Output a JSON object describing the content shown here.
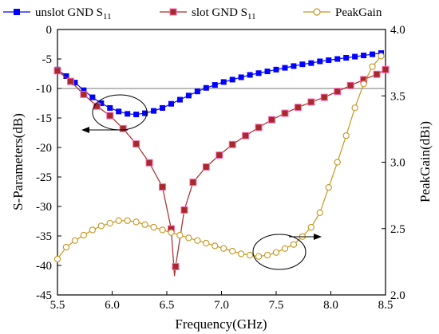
{
  "chart_data": {
    "type": "line",
    "xlabel": "Frequency(GHz)",
    "ylabel": "S-Parameters(dB)",
    "ylabel_right": "PeakGain(dBi)",
    "xlim": [
      5.5,
      8.5
    ],
    "ylim": [
      -45,
      0
    ],
    "ylim_right": [
      2.0,
      4.0
    ],
    "x_ticks": [
      "5.5",
      "6.0",
      "6.5",
      "7.0",
      "7.5",
      "8.0",
      "8.5"
    ],
    "y_ticks": [
      "0",
      "-5",
      "-10",
      "-15",
      "-20",
      "-25",
      "-30",
      "-35",
      "-40",
      "-45"
    ],
    "y_ticks_right": [
      "2.0",
      "2.5",
      "3.0",
      "3.5",
      "4.0"
    ],
    "grid": false,
    "legend_position": "top",
    "reference_line_db": -10,
    "series": [
      {
        "name": "unslot GND S",
        "name_subscript": "11",
        "axis": "left",
        "color": "#0000ff",
        "marker": "filled-square",
        "x": [
          5.5,
          5.58,
          5.66,
          5.74,
          5.82,
          5.9,
          5.98,
          6.06,
          6.14,
          6.22,
          6.3,
          6.38,
          6.46,
          6.54,
          6.62,
          6.7,
          6.78,
          6.86,
          6.94,
          7.02,
          7.1,
          7.18,
          7.26,
          7.34,
          7.42,
          7.5,
          7.58,
          7.66,
          7.74,
          7.82,
          7.9,
          7.98,
          8.06,
          8.14,
          8.22,
          8.3,
          8.38,
          8.46
        ],
        "values": [
          -6.8,
          -7.9,
          -9.0,
          -10.3,
          -11.5,
          -12.5,
          -13.3,
          -13.9,
          -14.3,
          -14.4,
          -14.2,
          -13.8,
          -13.3,
          -12.6,
          -11.9,
          -11.2,
          -10.5,
          -9.9,
          -9.4,
          -8.9,
          -8.5,
          -8.1,
          -7.7,
          -7.4,
          -7.1,
          -6.8,
          -6.5,
          -6.2,
          -5.9,
          -5.7,
          -5.4,
          -5.2,
          -5.0,
          -4.8,
          -4.6,
          -4.4,
          -4.2,
          -4.0
        ]
      },
      {
        "name": "slot GND S",
        "name_subscript": "11",
        "axis": "left",
        "color": "#a52a2a",
        "marker": "filled-square",
        "x": [
          5.5,
          5.62,
          5.74,
          5.86,
          5.98,
          6.1,
          6.22,
          6.34,
          6.46,
          6.54,
          6.58,
          6.66,
          6.74,
          6.86,
          6.98,
          7.1,
          7.22,
          7.34,
          7.46,
          7.58,
          7.7,
          7.82,
          7.94,
          8.06,
          8.18,
          8.3,
          8.42,
          8.5
        ],
        "values": [
          -7.0,
          -8.8,
          -11.0,
          -13.0,
          -14.6,
          -16.8,
          -19.4,
          -22.6,
          -26.7,
          -33.8,
          -40.2,
          -30.6,
          -25.9,
          -23.3,
          -21.3,
          -19.5,
          -18.0,
          -16.6,
          -15.3,
          -14.2,
          -13.2,
          -12.3,
          -11.5,
          -10.5,
          -9.5,
          -8.5,
          -7.6,
          -6.8
        ]
      },
      {
        "name": "PeakGain",
        "axis": "right",
        "color": "#c8961e",
        "marker": "open-circle",
        "x": [
          5.5,
          5.58,
          5.66,
          5.74,
          5.82,
          5.9,
          5.98,
          6.06,
          6.14,
          6.22,
          6.3,
          6.38,
          6.46,
          6.54,
          6.62,
          6.7,
          6.78,
          6.86,
          6.94,
          7.02,
          7.1,
          7.18,
          7.26,
          7.34,
          7.42,
          7.5,
          7.58,
          7.66,
          7.74,
          7.82,
          7.9,
          7.98,
          8.06,
          8.14,
          8.22,
          8.3,
          8.38,
          8.46
        ],
        "values": [
          2.27,
          2.36,
          2.41,
          2.45,
          2.49,
          2.52,
          2.54,
          2.56,
          2.56,
          2.55,
          2.53,
          2.51,
          2.49,
          2.47,
          2.45,
          2.43,
          2.41,
          2.39,
          2.37,
          2.35,
          2.33,
          2.31,
          2.3,
          2.29,
          2.3,
          2.32,
          2.35,
          2.38,
          2.44,
          2.51,
          2.62,
          2.81,
          3.0,
          3.2,
          3.41,
          3.59,
          3.72,
          3.8
        ]
      }
    ]
  }
}
